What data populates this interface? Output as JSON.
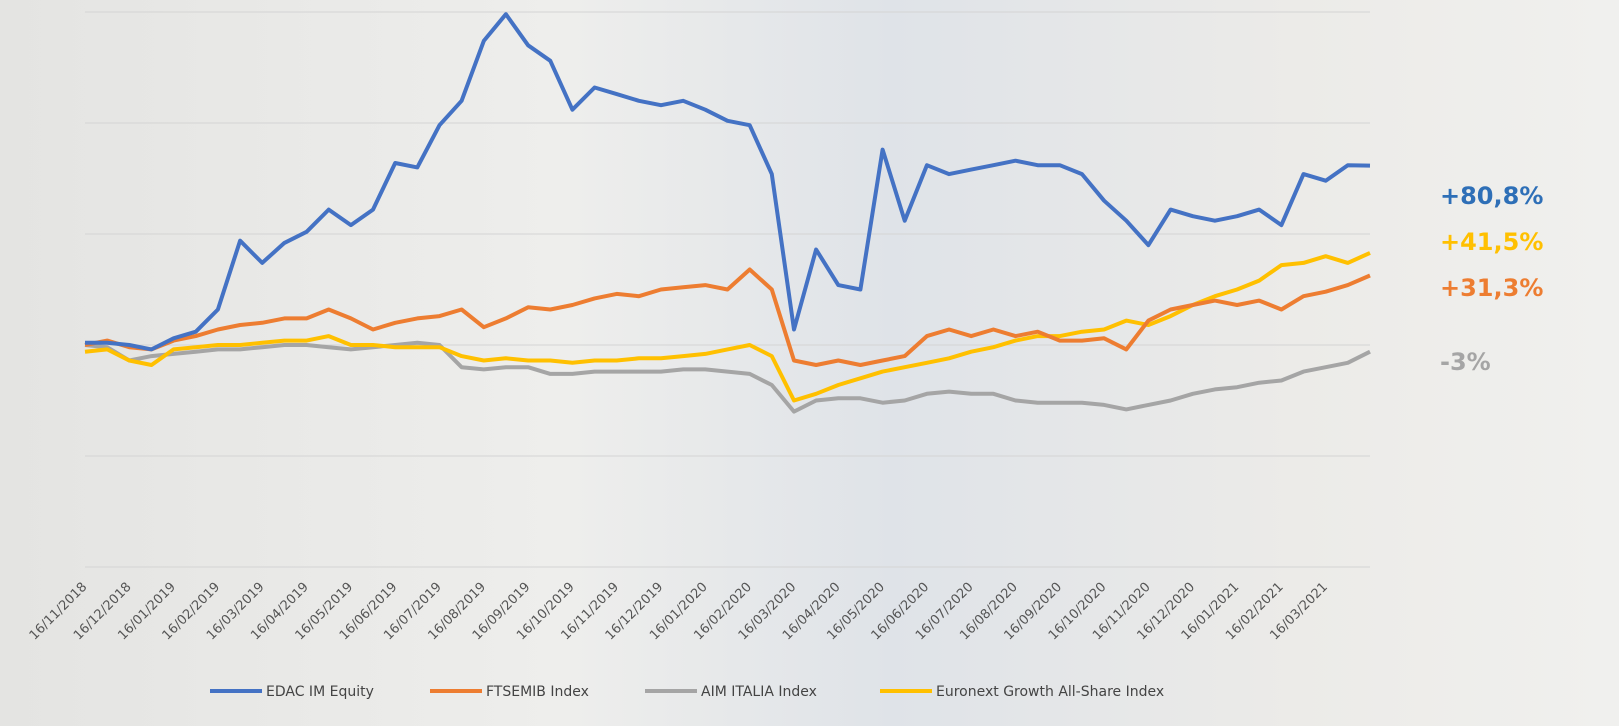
{
  "chart_data": {
    "type": "line",
    "categories": [
      "16/11/2018",
      null,
      "16/12/2018",
      null,
      "16/01/2019",
      null,
      "16/02/2019",
      null,
      "16/03/2019",
      null,
      "16/04/2019",
      null,
      "16/05/2019",
      null,
      "16/06/2019",
      null,
      "16/07/2019",
      null,
      "16/08/2019",
      null,
      "16/09/2019",
      null,
      "16/10/2019",
      null,
      "16/11/2019",
      null,
      "16/12/2019",
      null,
      "16/01/2020",
      null,
      "16/02/2020",
      null,
      "16/03/2020",
      null,
      "16/04/2020",
      null,
      "16/05/2020",
      null,
      "16/06/2020",
      null,
      "16/07/2020",
      null,
      "16/08/2020",
      null,
      "16/09/2020",
      null,
      "16/10/2020",
      null,
      "16/11/2020",
      null,
      "16/12/2020",
      null,
      "16/01/2021",
      null,
      "16/02/2021",
      null,
      "16/03/2021",
      null,
      null
    ],
    "series": [
      {
        "name": "EDAC IM Equity",
        "color": "#4472c4",
        "end_label": "+80,8%",
        "label_color": "#2e6fb7",
        "values": [
          1,
          1,
          0,
          -2,
          3,
          6,
          16,
          47,
          37,
          46,
          51,
          61,
          54,
          61,
          82,
          80,
          99,
          110,
          137,
          149,
          135,
          128,
          106,
          116,
          113,
          110,
          108,
          110,
          106,
          101,
          99,
          77,
          7,
          43,
          27,
          25,
          88,
          56,
          81,
          77,
          79,
          81,
          83,
          81,
          81,
          77,
          65,
          56,
          45,
          61,
          58,
          56,
          58,
          61,
          54,
          77,
          74,
          81,
          80.8
        ]
      },
      {
        "name": "FTSEMIB Index",
        "color": "#ed7d31",
        "end_label": "+31,3%",
        "label_color": "#ed7d31",
        "values": [
          0,
          2,
          -1,
          -2,
          2,
          4,
          7,
          9,
          10,
          12,
          12,
          16,
          12,
          7,
          10,
          12,
          13,
          16,
          8,
          12,
          17,
          16,
          18,
          21,
          23,
          22,
          25,
          26,
          27,
          25,
          34,
          25,
          -7,
          -9,
          -7,
          -9,
          -7,
          -5,
          4,
          7,
          4,
          7,
          4,
          6,
          2,
          2,
          3,
          -2,
          11,
          16,
          18,
          20,
          18,
          20,
          16,
          22,
          24,
          27,
          31.3
        ]
      },
      {
        "name": "AIM ITALIA Index",
        "color": "#a5a5a5",
        "end_label": "-3%",
        "label_color": "#a5a5a5",
        "values": [
          0,
          -1,
          -7,
          -5,
          -4,
          -3,
          -2,
          -2,
          -1,
          0,
          0,
          -1,
          -2,
          -1,
          0,
          1,
          0,
          -10,
          -11,
          -10,
          -10,
          -13,
          -13,
          -12,
          -12,
          -12,
          -12,
          -11,
          -11,
          -12,
          -13,
          -18,
          -30,
          -25,
          -24,
          -24,
          -26,
          -25,
          -22,
          -21,
          -22,
          -22,
          -25,
          -26,
          -26,
          -26,
          -27,
          -29,
          -27,
          -25,
          -22,
          -20,
          -19,
          -17,
          -16,
          -12,
          -10,
          -8,
          -3
        ]
      },
      {
        "name": "Euronext Growth All-Share Index",
        "color": "#ffc000",
        "end_label": "+41,5%",
        "label_color": "#ffc000",
        "values": [
          -3,
          -2,
          -7,
          -9,
          -2,
          -1,
          0,
          0,
          1,
          2,
          2,
          4,
          0,
          0,
          -1,
          -1,
          -1,
          -5,
          -7,
          -6,
          -7,
          -7,
          -8,
          -7,
          -7,
          -6,
          -6,
          -5,
          -4,
          -2,
          0,
          -5,
          -25,
          -22,
          -18,
          -15,
          -12,
          -10,
          -8,
          -6,
          -3,
          -1,
          2,
          4,
          4,
          6,
          7,
          11,
          9,
          13,
          18,
          22,
          25,
          29,
          36,
          37,
          40,
          37,
          41.5
        ]
      }
    ],
    "ylim": [
      -100,
      150
    ],
    "yticks": [
      -100,
      -50,
      0,
      50,
      100,
      150
    ],
    "grid": true,
    "legend": "bottom"
  }
}
